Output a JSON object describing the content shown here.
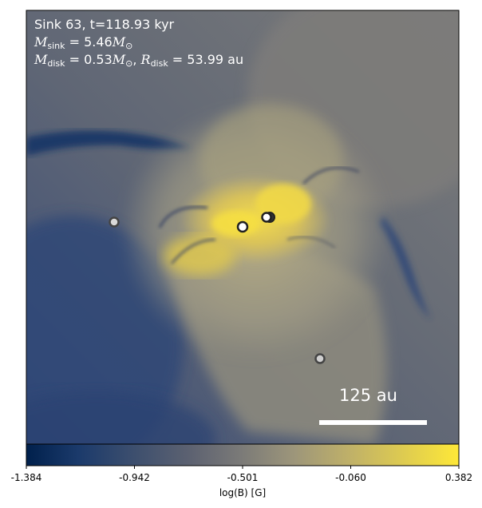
{
  "annotation": {
    "line1": "Sink 63, t=118.93 kyr",
    "m_sink_symbol": "M",
    "m_sink_sub": "sink",
    "m_sink_value": " = 5.46",
    "m_disk_symbol": "M",
    "m_disk_sub": "disk",
    "m_disk_value": " = 0.53",
    "r_disk_symbol": "R",
    "r_disk_sub": "disk",
    "r_disk_value": " = 53.99 au",
    "sun_unit": "M",
    "sun_sub": "⊙"
  },
  "scale_bar": {
    "label": "125 au"
  },
  "colorbar": {
    "label": "log(B) [G]",
    "ticks": [
      "-1.384",
      "-0.942",
      "-0.501",
      "-0.060",
      "0.382"
    ],
    "min": -1.384,
    "max": 0.382,
    "colors": {
      "low": "#00204c",
      "mid": "#7c7b78",
      "high": "#fee838"
    }
  },
  "sinks": [
    {
      "name": "sink-primary",
      "style": "bright"
    },
    {
      "name": "sink-pair-a",
      "style": "bright"
    },
    {
      "name": "sink-pair-b",
      "style": "dark"
    },
    {
      "name": "sink-left",
      "style": "faint"
    },
    {
      "name": "sink-lower-right",
      "style": "faint"
    }
  ]
}
